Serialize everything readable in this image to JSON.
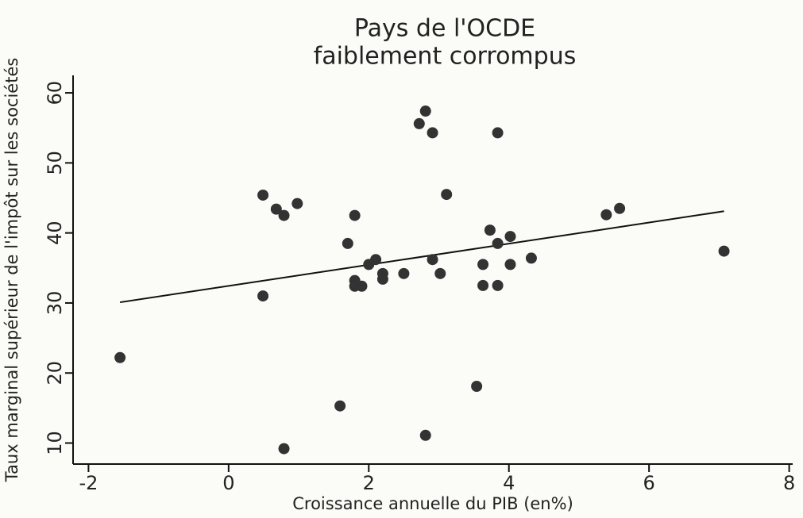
{
  "chart_data": {
    "type": "scatter",
    "title": [
      "Pays de l'OCDE",
      "faiblement corrompus"
    ],
    "xlabel": "Croissance annuelle du PIB (en%)",
    "ylabel": "Taux marginal supérieur de l'impôt sur les sociétés",
    "color": "#333333",
    "x": [
      -1.55,
      0.49,
      0.49,
      0.68,
      0.79,
      0.98,
      0.79,
      1.59,
      1.7,
      1.8,
      1.8,
      1.8,
      1.9,
      2.0,
      2.1,
      2.2,
      2.2,
      2.5,
      2.72,
      2.81,
      2.91,
      2.81,
      2.91,
      3.02,
      3.11,
      3.54,
      3.63,
      3.63,
      3.73,
      3.84,
      3.84,
      3.84,
      4.02,
      4.02,
      4.32,
      5.39,
      5.58,
      7.07
    ],
    "values": [
      22.2,
      45.4,
      31.0,
      43.4,
      42.5,
      44.2,
      9.2,
      15.3,
      38.5,
      42.5,
      33.2,
      32.4,
      32.4,
      35.5,
      36.2,
      34.2,
      33.4,
      34.2,
      55.6,
      57.4,
      54.3,
      11.1,
      36.2,
      34.2,
      45.5,
      18.1,
      35.5,
      32.5,
      40.4,
      38.5,
      54.3,
      32.5,
      39.5,
      35.5,
      36.4,
      42.6,
      43.5,
      37.4
    ],
    "fit_line": {
      "x": [
        -1.55,
        7.07
      ],
      "values": [
        30.1,
        43.1
      ]
    },
    "xlim": [
      -2.22,
      8.05
    ],
    "ylim": [
      7,
      62.5
    ],
    "xticks": [
      -2,
      0,
      2,
      4,
      6,
      8
    ],
    "yticks": [
      10,
      20,
      30,
      40,
      50,
      60
    ]
  }
}
